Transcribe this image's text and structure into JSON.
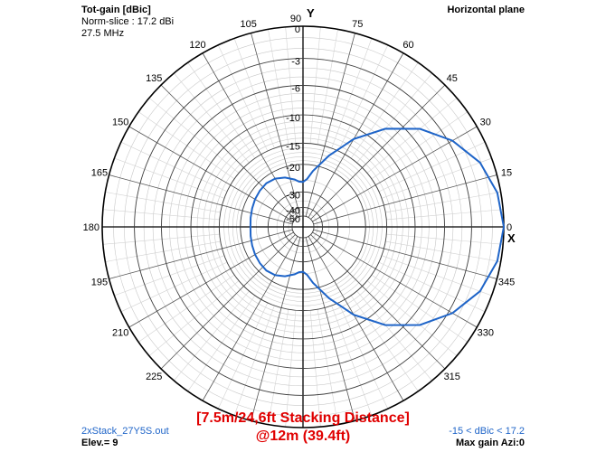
{
  "header": {
    "title": "Tot-gain [dBic]",
    "norm": "Norm-slice : 17.2 dBi",
    "freq": "27.5 MHz",
    "plane": "Horizontal plane"
  },
  "footer": {
    "file": "2xStack_27Y5S.out",
    "elev": "Elev.= 9",
    "range": "-15 < dBic < 17.2",
    "maxgain": "Max gain Azi:0"
  },
  "caption": {
    "line1": "[7.5m/24,6ft Stacking Distance]",
    "line2": "@12m (39.4ft)"
  },
  "axes": {
    "y_label": "Y",
    "x_label": "X"
  },
  "colors": {
    "trace": "#1e64c8",
    "caption": "#e00000"
  },
  "chart_data": {
    "type": "line",
    "coordinate_system": "polar",
    "radial_unit": "dB relative (normalized)",
    "radial_ticks": [
      "0",
      "-3",
      "-6",
      "-10",
      "-15",
      "-20",
      "-30",
      "-40",
      "-50"
    ],
    "radial_tick_values": [
      0,
      -3,
      -6,
      -10,
      -15,
      -20,
      -30,
      -40,
      -50
    ],
    "angle_ticks": [
      "0",
      "15",
      "30",
      "45",
      "60",
      "75",
      "90",
      "105",
      "120",
      "135",
      "150",
      "165",
      "180",
      "195",
      "210",
      "225",
      "315",
      "330",
      "345"
    ],
    "angle_tick_values": [
      0,
      15,
      30,
      45,
      60,
      75,
      90,
      105,
      120,
      135,
      150,
      165,
      180,
      195,
      210,
      225,
      315,
      330,
      345
    ],
    "series": [
      {
        "angles_deg": [
          0,
          10,
          20,
          30,
          40,
          50,
          60,
          70,
          80,
          85,
          90,
          95,
          100,
          110,
          120,
          130,
          140,
          150,
          160,
          170,
          180,
          190,
          200,
          210,
          220,
          230,
          240,
          250,
          260,
          265,
          270,
          275,
          280,
          290,
          300,
          310,
          320,
          330,
          340,
          350,
          360
        ],
        "gain_db": [
          0,
          -0.3,
          -1.1,
          -2.6,
          -4.7,
          -7.7,
          -11.7,
          -16.7,
          -21.7,
          -24.5,
          -25.7,
          -25.5,
          -24.5,
          -23,
          -22,
          -21.6,
          -21.8,
          -22.1,
          -22.5,
          -22.8,
          -23,
          -22.8,
          -22.5,
          -22.1,
          -21.8,
          -21.6,
          -22,
          -23,
          -24.5,
          -25.5,
          -25.7,
          -24.5,
          -21.7,
          -16.7,
          -11.7,
          -7.7,
          -4.7,
          -2.6,
          -1.1,
          -0.3,
          0
        ]
      }
    ]
  }
}
